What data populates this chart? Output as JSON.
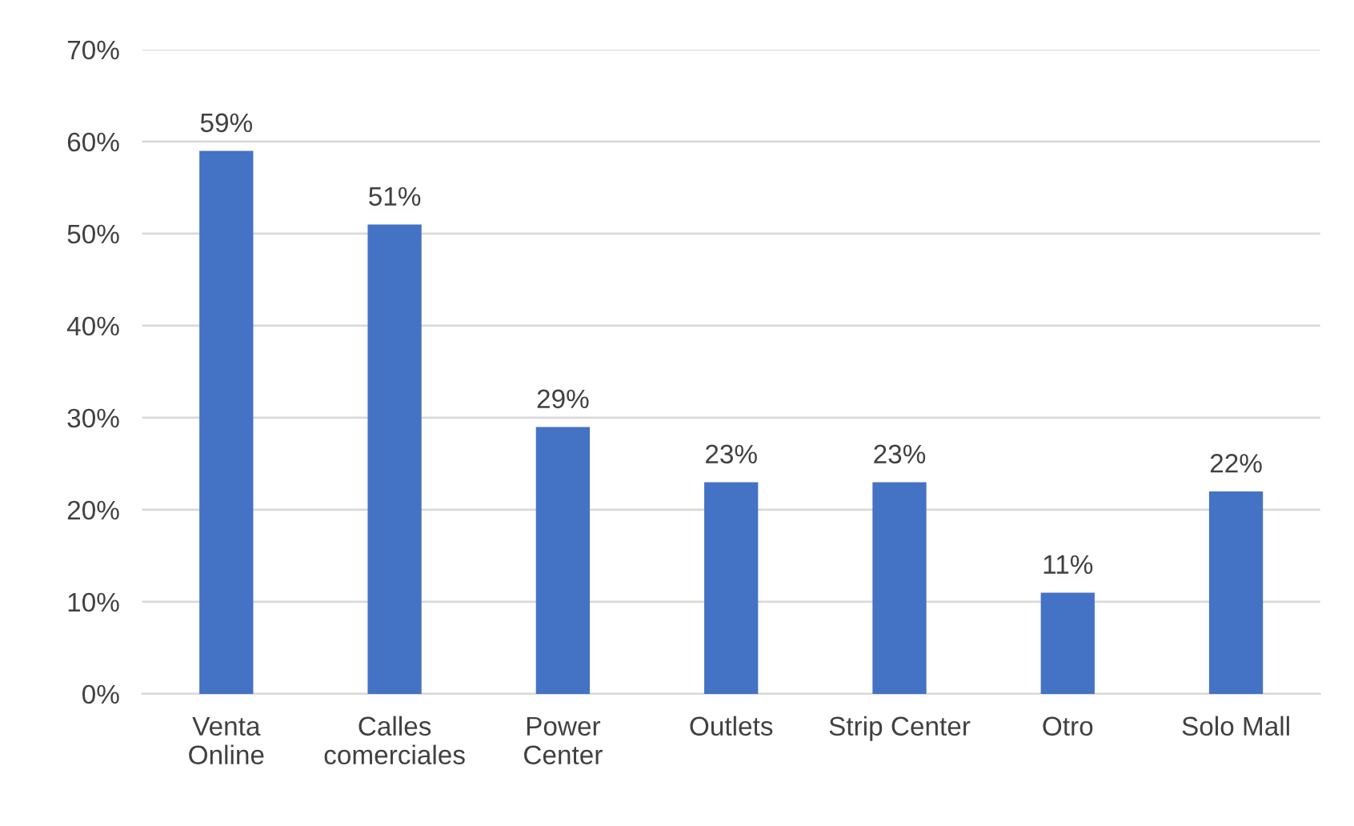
{
  "chart_data": {
    "type": "bar",
    "categories": [
      "Venta\nOnline",
      "Calles\ncomerciales",
      "Power\nCenter",
      "Outlets",
      "Strip Center",
      "Otro",
      "Solo Mall"
    ],
    "values": [
      59,
      51,
      29,
      23,
      23,
      11,
      22
    ],
    "value_labels": [
      "59%",
      "51%",
      "29%",
      "23%",
      "23%",
      "11%",
      "22%"
    ],
    "color": "#4472c4",
    "ylim": [
      0,
      70
    ],
    "yticks": [
      {
        "value": 0,
        "label": "0%"
      },
      {
        "value": 10,
        "label": "10%"
      },
      {
        "value": 20,
        "label": "20%"
      },
      {
        "value": 30,
        "label": "30%"
      },
      {
        "value": 40,
        "label": "40%"
      },
      {
        "value": 50,
        "label": "50%"
      },
      {
        "value": 60,
        "label": "60%"
      },
      {
        "value": 70,
        "label": "70%"
      }
    ],
    "grid": "y"
  }
}
